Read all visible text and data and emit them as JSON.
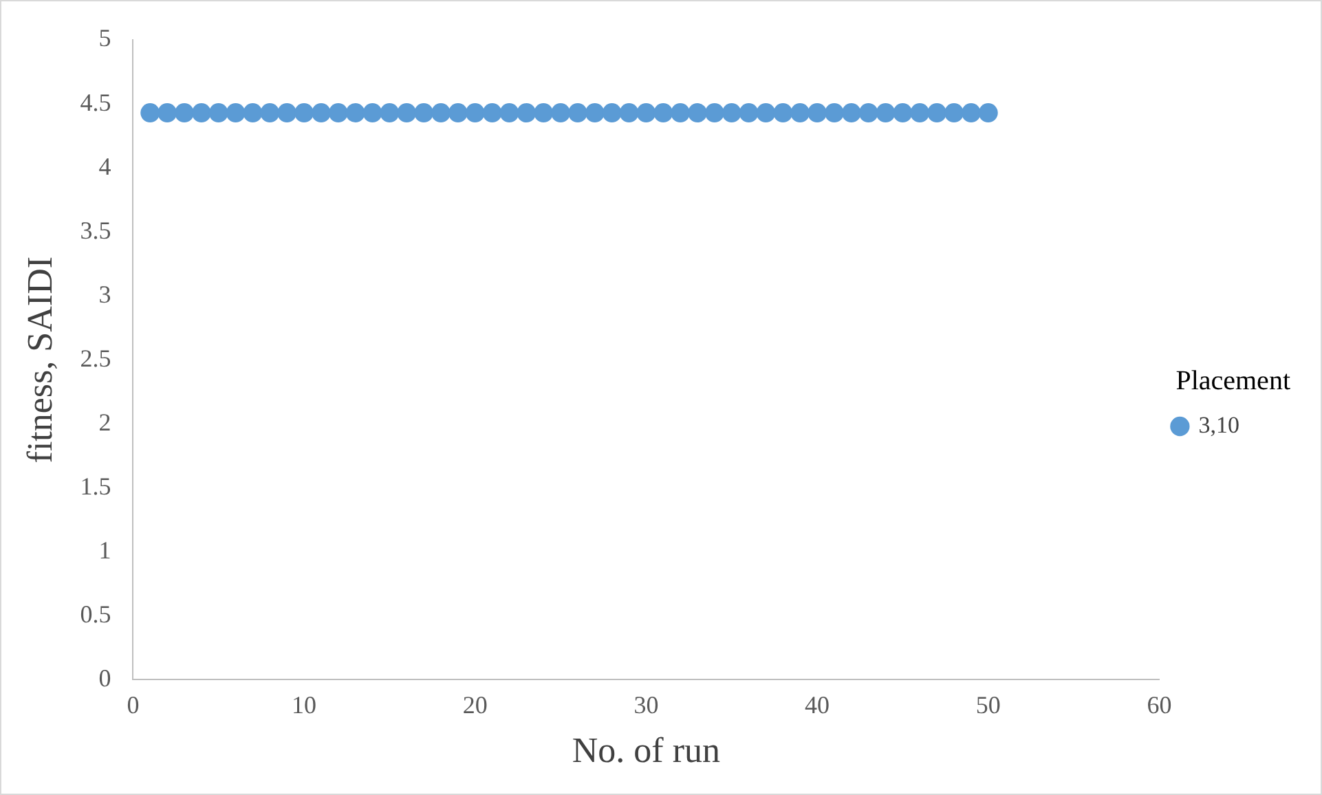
{
  "chart_data": {
    "type": "scatter",
    "xlabel": "No. of run",
    "ylabel": "fitness, SAIDI",
    "legend_title": "Placement",
    "x": [
      1,
      2,
      3,
      4,
      5,
      6,
      7,
      8,
      9,
      10,
      11,
      12,
      13,
      14,
      15,
      16,
      17,
      18,
      19,
      20,
      21,
      22,
      23,
      24,
      25,
      26,
      27,
      28,
      29,
      30,
      31,
      32,
      33,
      34,
      35,
      36,
      37,
      38,
      39,
      40,
      41,
      42,
      43,
      44,
      45,
      46,
      47,
      48,
      49,
      50
    ],
    "series": [
      {
        "name": "3,10",
        "color": "#5b9bd5",
        "values": [
          4.43,
          4.43,
          4.43,
          4.43,
          4.43,
          4.43,
          4.43,
          4.43,
          4.43,
          4.43,
          4.43,
          4.43,
          4.43,
          4.43,
          4.43,
          4.43,
          4.43,
          4.43,
          4.43,
          4.43,
          4.43,
          4.43,
          4.43,
          4.43,
          4.43,
          4.43,
          4.43,
          4.43,
          4.43,
          4.43,
          4.43,
          4.43,
          4.43,
          4.43,
          4.43,
          4.43,
          4.43,
          4.43,
          4.43,
          4.43,
          4.43,
          4.43,
          4.43,
          4.43,
          4.43,
          4.43,
          4.43,
          4.43,
          4.43,
          4.43
        ]
      }
    ],
    "xlim": [
      0,
      60
    ],
    "xticks": [
      0,
      10,
      20,
      30,
      40,
      50,
      60
    ],
    "ylim": [
      0,
      5
    ],
    "yticks": [
      0,
      0.5,
      1,
      1.5,
      2,
      2.5,
      3,
      3.5,
      4,
      4.5,
      5
    ],
    "grid": false,
    "legend": "right",
    "marker": "circle"
  }
}
